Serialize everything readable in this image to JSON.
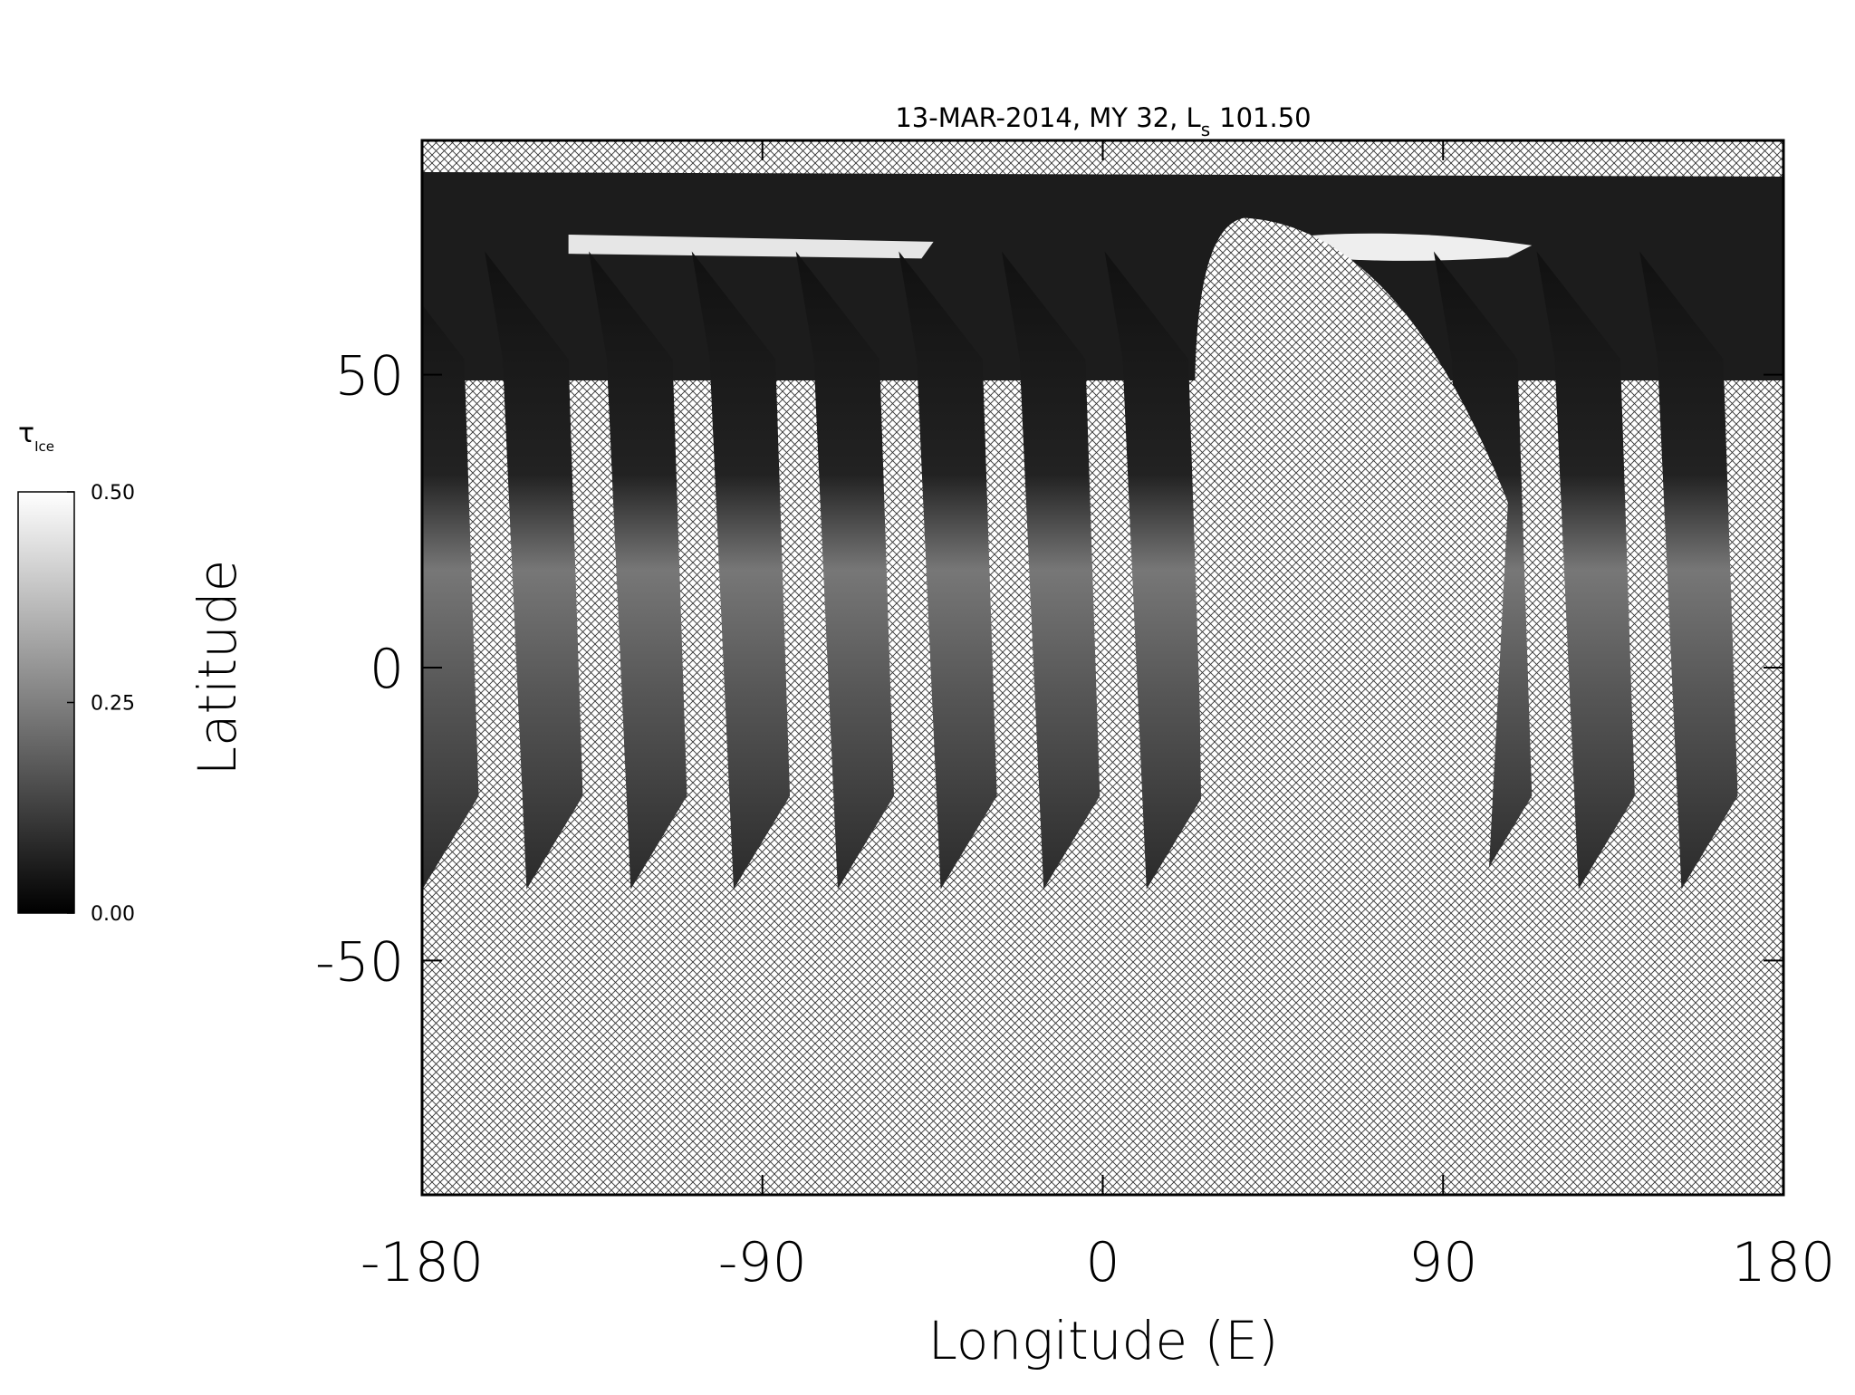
{
  "chart_data": {
    "type": "map",
    "title": "13-MAR-2014, MY 32,  L",
    "title_subscript": "s",
    "title_suffix": "101.50",
    "xlabel": "Longitude (E)",
    "ylabel": "Latitude",
    "xlim": [
      -180,
      180
    ],
    "ylim": [
      -90,
      90
    ],
    "xticks": [
      -180,
      -90,
      0,
      90,
      180
    ],
    "yticks": [
      -50,
      0,
      50
    ],
    "colorbar": {
      "label": "τ",
      "label_subscript": "Ice",
      "lim": [
        0,
        0.5
      ],
      "ticks": [
        {
          "value": 0,
          "label": "0.00"
        },
        {
          "value": 0.25,
          "label": "0.25"
        },
        {
          "value": 0.5,
          "label": "0.50"
        }
      ],
      "colors": [
        "#000000",
        "#ffffff"
      ]
    }
  }
}
